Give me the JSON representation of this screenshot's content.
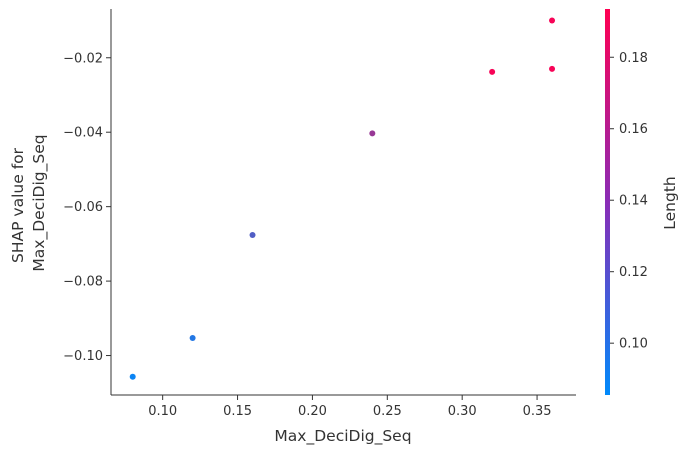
{
  "chart_data": {
    "type": "scatter",
    "xlabel": "Max_DeciDig_Seq",
    "ylabel_lines": [
      "SHAP value for",
      "Max_DeciDig_Seq"
    ],
    "colorbar_label": "Length",
    "xlim": [
      0.0655,
      0.376
    ],
    "ylim": [
      -0.1106,
      -0.0069
    ],
    "xticks": [
      0.1,
      0.15,
      0.2,
      0.25,
      0.3,
      0.35
    ],
    "xtick_labels": [
      "0.10",
      "0.15",
      "0.20",
      "0.25",
      "0.30",
      "0.35"
    ],
    "yticks": [
      -0.1,
      -0.08,
      -0.06,
      -0.04,
      -0.02
    ],
    "ytick_labels": [
      "−0.10",
      "−0.08",
      "−0.06",
      "−0.04",
      "−0.02"
    ],
    "colorbar_range": [
      0.0855,
      0.1935
    ],
    "colorbar_ticks": [
      0.1,
      0.12,
      0.14,
      0.16,
      0.18
    ],
    "colorbar_tick_labels": [
      "0.10",
      "0.12",
      "0.14",
      "0.16",
      "0.18"
    ],
    "colormap": [
      "#008afb",
      "#ff0052"
    ],
    "points": [
      {
        "x": 0.08,
        "y": -0.1057,
        "color_value": 0.09
      },
      {
        "x": 0.12,
        "y": -0.0953,
        "color_value": 0.1
      },
      {
        "x": 0.16,
        "y": -0.0676,
        "color_value": 0.12
      },
      {
        "x": 0.24,
        "y": -0.0403,
        "color_value": 0.15
      },
      {
        "x": 0.32,
        "y": -0.0238,
        "color_value": 0.19
      },
      {
        "x": 0.36,
        "y": -0.01,
        "color_value": 0.19
      },
      {
        "x": 0.36,
        "y": -0.023,
        "color_value": 0.19
      }
    ]
  }
}
